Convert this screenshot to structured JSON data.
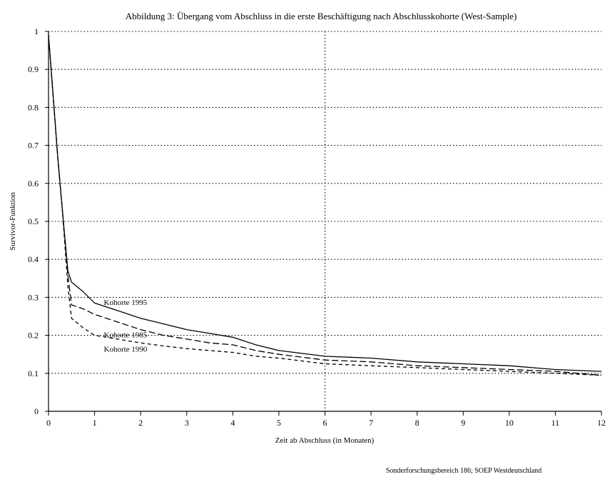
{
  "chart_data": {
    "type": "line",
    "title": "Abbildung 3: Übergang vom Abschluss in die erste Beschäftigung nach Abschlusskohorte (West-Sample)",
    "xlabel": "Zeit ab Abschluss (in Monaten)",
    "ylabel": "Survivor-Funktion",
    "xlim": [
      0,
      12
    ],
    "ylim": [
      0,
      1
    ],
    "x_ticks": [
      0,
      1,
      2,
      3,
      4,
      5,
      6,
      7,
      8,
      9,
      10,
      11,
      12
    ],
    "y_ticks": [
      0,
      0.1,
      0.2,
      0.3,
      0.4,
      0.5,
      0.6,
      0.7,
      0.8,
      0.9,
      1
    ],
    "y_tick_labels": [
      "0",
      "0.1",
      "0.2",
      "0.3",
      "0.4",
      "0.5",
      "0.6",
      "0.7",
      "0.8",
      "0.9",
      "1"
    ],
    "grid": "dotted horizontal at every y tick; dotted vertical at x=6",
    "reference_line_x": 6,
    "series": [
      {
        "name": "Kohorte 1995",
        "style": "solid",
        "x": [
          0,
          0.1,
          0.2,
          0.3,
          0.42,
          0.5,
          0.75,
          1,
          1.5,
          2,
          2.5,
          3,
          3.5,
          4,
          4.5,
          5,
          6,
          7,
          8,
          9,
          10,
          11,
          12
        ],
        "y": [
          0.99,
          0.83,
          0.67,
          0.53,
          0.37,
          0.34,
          0.315,
          0.285,
          0.265,
          0.245,
          0.23,
          0.215,
          0.205,
          0.195,
          0.175,
          0.16,
          0.145,
          0.14,
          0.13,
          0.125,
          0.12,
          0.11,
          0.105
        ]
      },
      {
        "name": "Kohorte 1985",
        "style": "long-dash",
        "x": [
          0,
          0.1,
          0.2,
          0.3,
          0.42,
          0.5,
          0.75,
          1,
          1.5,
          2,
          2.5,
          3,
          3.5,
          4,
          4.5,
          5,
          6,
          7,
          8,
          9,
          10,
          11,
          12
        ],
        "y": [
          0.99,
          0.83,
          0.67,
          0.53,
          0.36,
          0.28,
          0.27,
          0.255,
          0.235,
          0.215,
          0.2,
          0.19,
          0.18,
          0.175,
          0.16,
          0.15,
          0.135,
          0.13,
          0.12,
          0.115,
          0.11,
          0.105,
          0.095
        ]
      },
      {
        "name": "Kohorte 1990",
        "style": "short-dash",
        "x": [
          0,
          0.1,
          0.2,
          0.3,
          0.42,
          0.5,
          0.75,
          1,
          1.5,
          2,
          2.5,
          3,
          3.5,
          4,
          4.5,
          5,
          6,
          7,
          8,
          9,
          10,
          11,
          12
        ],
        "y": [
          0.99,
          0.83,
          0.67,
          0.53,
          0.33,
          0.245,
          0.22,
          0.2,
          0.19,
          0.18,
          0.172,
          0.165,
          0.16,
          0.155,
          0.145,
          0.14,
          0.125,
          0.12,
          0.115,
          0.11,
          0.105,
          0.1,
          0.095
        ]
      }
    ]
  },
  "source_note": "Sonderforschungsbereich 186; SOEP Westdeutschland"
}
